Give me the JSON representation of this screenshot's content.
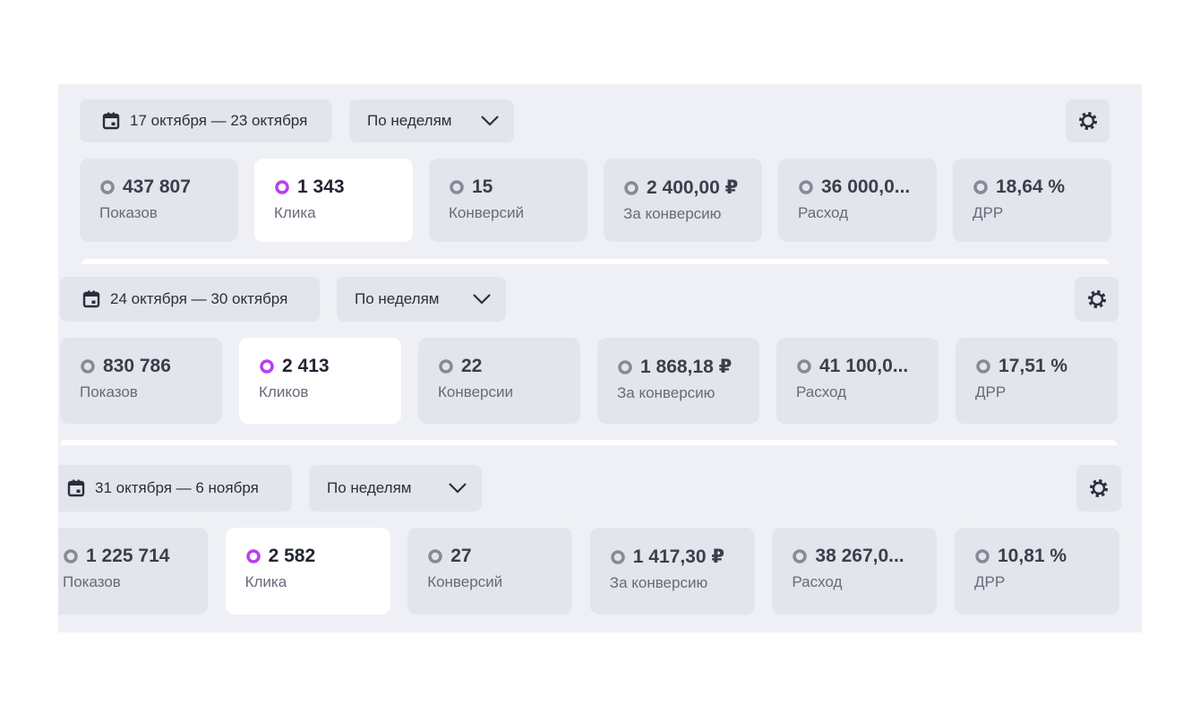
{
  "sections": [
    {
      "date": "17 октября — 23 октября",
      "period": "По неделям",
      "metrics": [
        {
          "value": "437 807",
          "label": "Показов"
        },
        {
          "value": "1 343",
          "label": "Клика"
        },
        {
          "value": "15",
          "label": "Конверсий"
        },
        {
          "value": "2 400,00 ₽",
          "label": "За конверсию"
        },
        {
          "value": "36 000,0...",
          "label": "Расход"
        },
        {
          "value": "18,64 %",
          "label": "ДРР"
        }
      ]
    },
    {
      "date": "24 октября — 30 октября",
      "period": "По неделям",
      "metrics": [
        {
          "value": "830 786",
          "label": "Показов"
        },
        {
          "value": "2 413",
          "label": "Кликов"
        },
        {
          "value": "22",
          "label": "Конверсии"
        },
        {
          "value": "1 868,18 ₽",
          "label": "За конверсию"
        },
        {
          "value": "41 100,0...",
          "label": "Расход"
        },
        {
          "value": "17,51 %",
          "label": "ДРР"
        }
      ]
    },
    {
      "date": "31 октября — 6 ноября",
      "period": "По неделям",
      "metrics": [
        {
          "value": "1 225 714",
          "label": "Показов"
        },
        {
          "value": "2 582",
          "label": "Клика"
        },
        {
          "value": "27",
          "label": "Конверсий"
        },
        {
          "value": "1 417,30 ₽",
          "label": "За конверсию"
        },
        {
          "value": "38 267,0...",
          "label": "Расход"
        },
        {
          "value": "10,81 %",
          "label": "ДРР"
        }
      ]
    }
  ]
}
